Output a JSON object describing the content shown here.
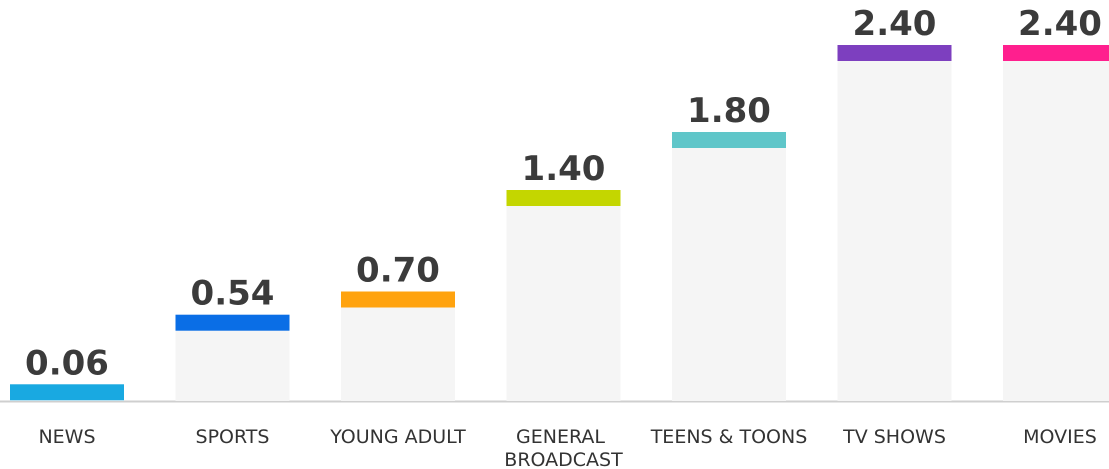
{
  "chart_data": {
    "type": "bar",
    "categories": [
      "NEWS",
      "SPORTS",
      "YOUNG ADULT",
      "GENERAL BROADCAST",
      "TEENS & TOONS",
      "TV SHOWS",
      "MOVIES"
    ],
    "values": [
      0.06,
      0.54,
      0.7,
      1.4,
      1.8,
      2.4,
      2.4
    ],
    "value_labels": [
      "0.06",
      "0.54",
      "0.70",
      "1.40",
      "1.80",
      "2.40",
      "2.40"
    ],
    "colors": [
      "#19a9e1",
      "#0a6ee6",
      "#ffa30f",
      "#c4d600",
      "#5fc6c9",
      "#7d3fbf",
      "#ff1f8e"
    ],
    "ylim": [
      0,
      2.4
    ]
  }
}
